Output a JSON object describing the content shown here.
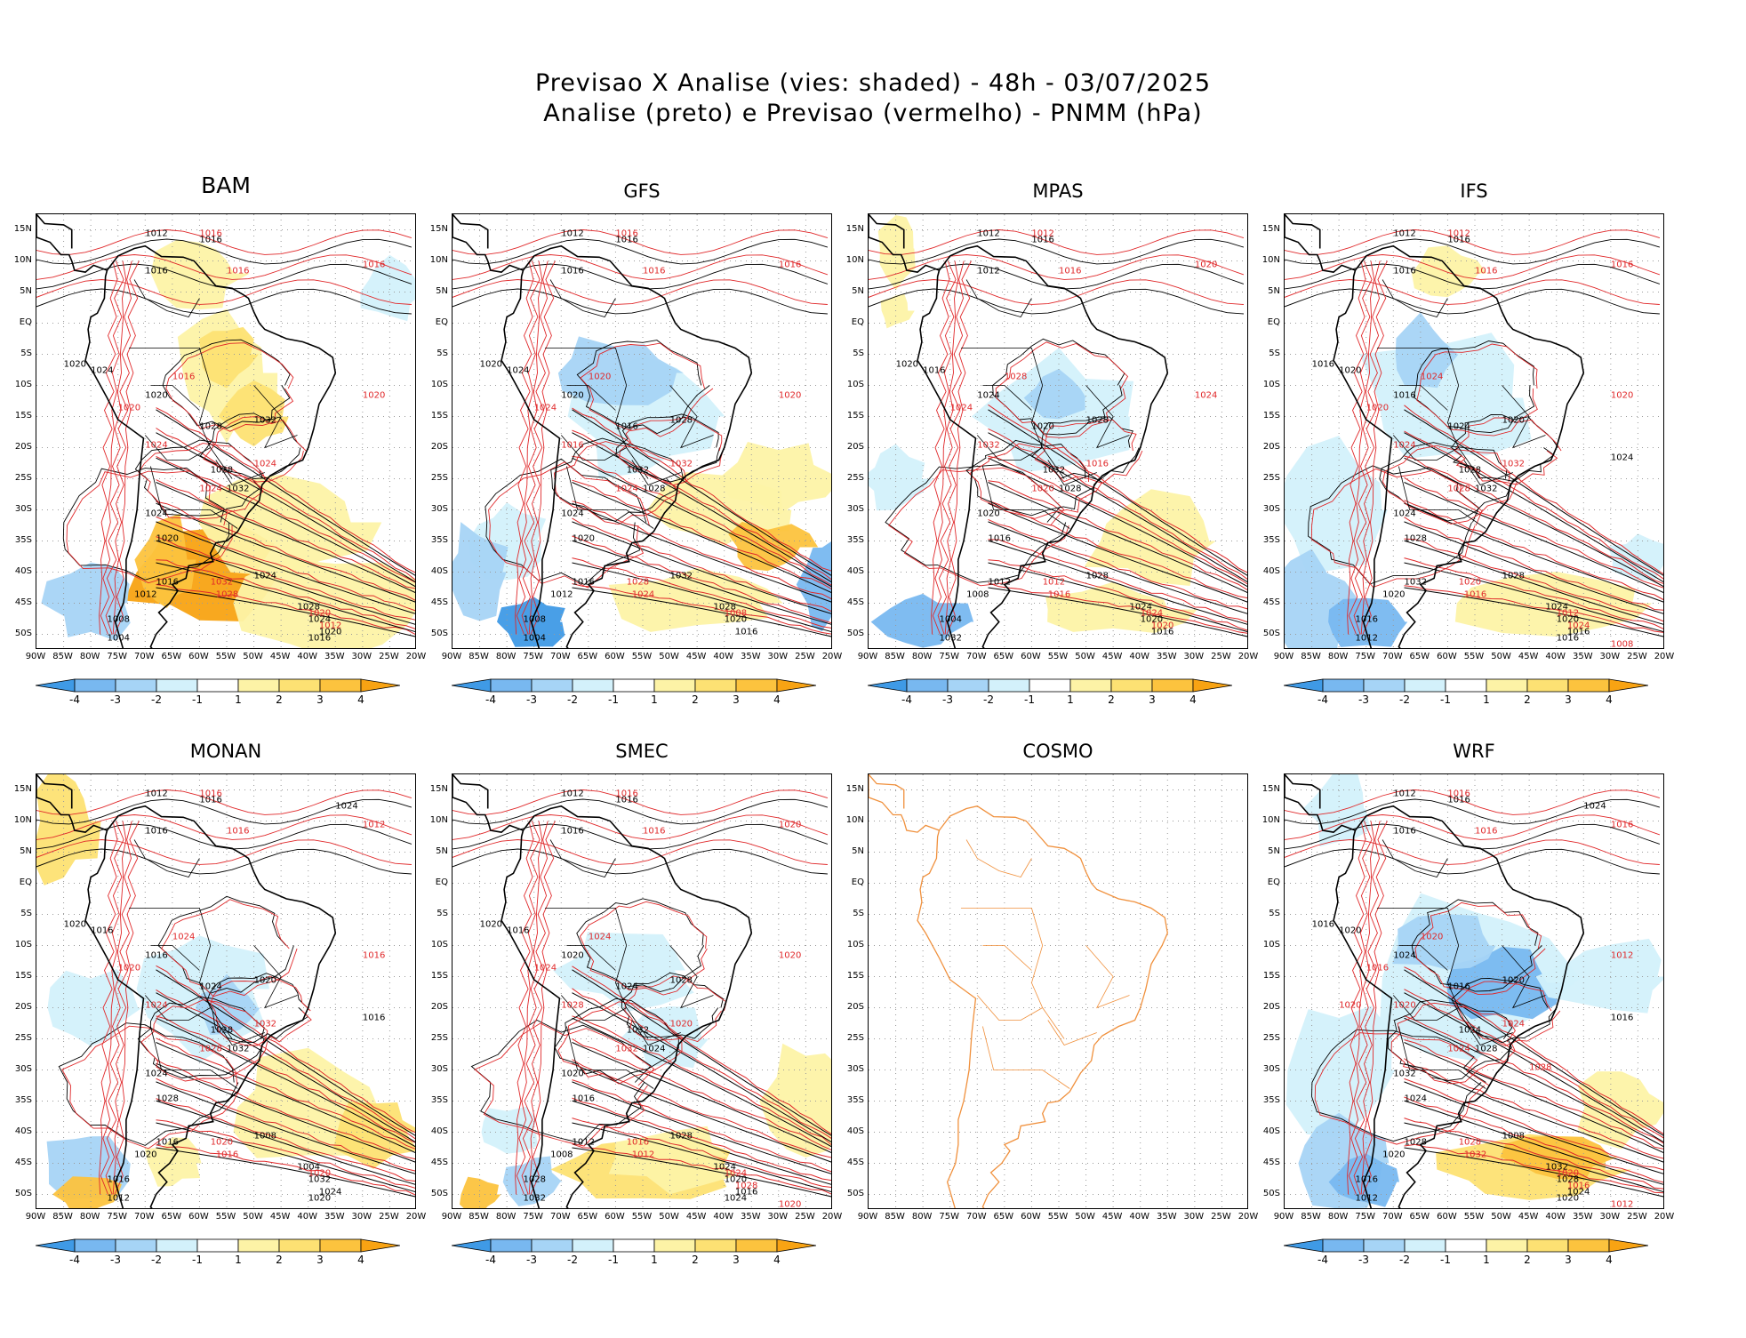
{
  "header": {
    "title_line1": "Previsao X Analise (vies: shaded) - 48h - 03/07/2025",
    "title_line2": "Analise (preto) e Previsao (vermelho) - PNMM (hPa)"
  },
  "axes": {
    "lat_labels": [
      "15N",
      "10N",
      "5N",
      "EQ",
      "5S",
      "10S",
      "15S",
      "20S",
      "25S",
      "30S",
      "35S",
      "40S",
      "45S",
      "50S"
    ],
    "lon_labels": [
      "90W",
      "85W",
      "80W",
      "75W",
      "70W",
      "65W",
      "60W",
      "55W",
      "50W",
      "45W",
      "40W",
      "35W",
      "30W",
      "25W",
      "20W"
    ]
  },
  "colorbar": {
    "labels": [
      "-4",
      "-3",
      "-2",
      "-1",
      "1",
      "2",
      "3",
      "4"
    ],
    "colors": [
      "#3f9ae6",
      "#78b8f0",
      "#a6d4f6",
      "#d3f1fb",
      "#ffffff",
      "#fdf3a6",
      "#fde173",
      "#fcc33e",
      "#f8a313"
    ]
  },
  "colors": {
    "analysis_contour": "#000000",
    "forecast_contour": "#e0282a",
    "cosmo_coast": "#f0903c",
    "grid": "#9a9a9a"
  },
  "panels": [
    {
      "name": "BAM",
      "has_data": true,
      "labels_black": [
        "1012",
        "1016",
        "1016",
        "1020",
        "1024",
        "1020",
        "1028",
        "1032",
        "1028",
        "1032",
        "1024",
        "1020",
        "1016",
        "1012",
        "1008",
        "1004",
        "1024",
        "1028",
        "1024",
        "1020",
        "1016"
      ],
      "labels_red": [
        "1016",
        "1016",
        "1016",
        "1020",
        "1020",
        "1016",
        "1024",
        "1024",
        "1024",
        "1032",
        "1028",
        "1020",
        "1012"
      ]
    },
    {
      "name": "GFS",
      "has_data": true,
      "labels_black": [
        "1012",
        "1016",
        "1016",
        "1020",
        "1024",
        "1020",
        "1016",
        "1028",
        "1032",
        "1028",
        "1024",
        "1020",
        "1016",
        "1012",
        "1008",
        "1004",
        "1032",
        "1028",
        "1020",
        "1016"
      ],
      "labels_red": [
        "1016",
        "1016",
        "1016",
        "1020",
        "1024",
        "1020",
        "1016",
        "1024",
        "1032",
        "1028",
        "1024",
        "1008"
      ]
    },
    {
      "name": "MPAS",
      "has_data": true,
      "labels_black": [
        "1012",
        "1016",
        "1012",
        "1020",
        "1016",
        "1024",
        "1020",
        "1028",
        "1032",
        "1028",
        "1020",
        "1016",
        "1012",
        "1008",
        "1004",
        "1032",
        "1028",
        "1024",
        "1020",
        "1016"
      ],
      "labels_red": [
        "1016",
        "1012",
        "1020",
        "1024",
        "1024",
        "1028",
        "1032",
        "1020",
        "1016",
        "1012",
        "1016",
        "1024",
        "1020"
      ]
    },
    {
      "name": "IFS",
      "has_data": true,
      "labels_black": [
        "1012",
        "1016",
        "1016",
        "1016",
        "1020",
        "1016",
        "1024",
        "1020",
        "1028",
        "1032",
        "1024",
        "1028",
        "1032",
        "1020",
        "1016",
        "1012",
        "1028",
        "1024",
        "1020",
        "1016",
        "1016",
        "1024"
      ],
      "labels_red": [
        "1016",
        "1012",
        "1016",
        "1020",
        "1020",
        "1024",
        "1024",
        "1028",
        "1032",
        "1020",
        "1016",
        "1012",
        "1024",
        "1008",
        "1020"
      ]
    },
    {
      "name": "MONAN",
      "has_data": true,
      "labels_black": [
        "1012",
        "1016",
        "1016",
        "1020",
        "1016",
        "1016",
        "1024",
        "1020",
        "1028",
        "1032",
        "1024",
        "1028",
        "1016",
        "1020",
        "1016",
        "1012",
        "1008",
        "1004",
        "1032",
        "1024",
        "1020",
        "1016",
        "1024"
      ],
      "labels_red": [
        "1016",
        "1016",
        "1012",
        "1016",
        "1020",
        "1024",
        "1024",
        "1028",
        "1032",
        "1020",
        "1016",
        "1020"
      ]
    },
    {
      "name": "SMEC",
      "has_data": true,
      "labels_black": [
        "1012",
        "1016",
        "1016",
        "1020",
        "1016",
        "1020",
        "1024",
        "1028",
        "1032",
        "1024",
        "1020",
        "1016",
        "1012",
        "1008",
        "1028",
        "1032",
        "1028",
        "1024",
        "1020",
        "1016",
        "1024"
      ],
      "labels_red": [
        "1016",
        "1016",
        "1020",
        "1020",
        "1024",
        "1024",
        "1028",
        "1032",
        "1020",
        "1016",
        "1012",
        "1024",
        "1028",
        "1020",
        "1016"
      ]
    },
    {
      "name": "COSMO",
      "has_data": false,
      "labels_black": [],
      "labels_red": []
    },
    {
      "name": "WRF",
      "has_data": true,
      "labels_black": [
        "1012",
        "1016",
        "1016",
        "1016",
        "1020",
        "1024",
        "1016",
        "1020",
        "1024",
        "1028",
        "1032",
        "1024",
        "1028",
        "1020",
        "1016",
        "1012",
        "1008",
        "1032",
        "1028",
        "1024",
        "1020",
        "1016",
        "1024"
      ],
      "labels_red": [
        "1016",
        "1016",
        "1016",
        "1012",
        "1016",
        "1020",
        "1020",
        "1024",
        "1024",
        "1028",
        "1032",
        "1020",
        "1016",
        "1012",
        "1024",
        "1028",
        "1020"
      ]
    }
  ]
}
